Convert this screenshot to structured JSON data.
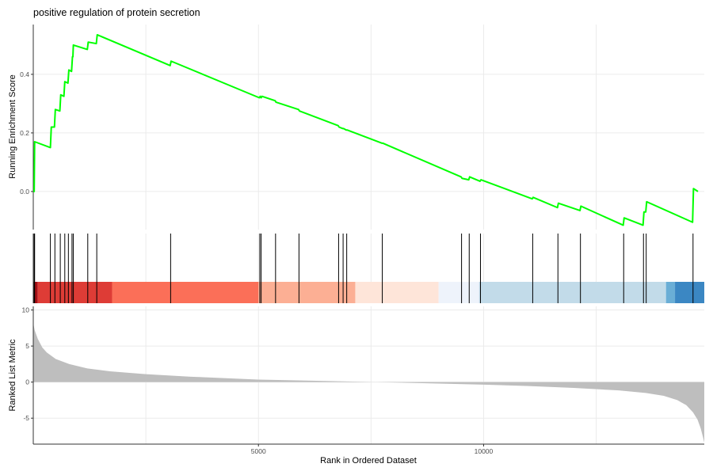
{
  "chart_data": {
    "type": "line",
    "title": "positive regulation of protein secretion",
    "xlabel": "Rank in Ordered Dataset",
    "x_ticks": [
      5000,
      10000
    ],
    "x_gridlines": [
      2500,
      5000,
      7500,
      10000,
      12500
    ],
    "xlim": [
      0,
      14900
    ],
    "grid": true,
    "colors": {
      "running_score": "#00ff00",
      "hit_line": "#000000",
      "metric_fill": "#bebebe",
      "axis": "#333333",
      "gridline": "#ebebeb"
    },
    "panels": {
      "running_score": {
        "ylabel": "Running Enrichment Score",
        "ylim": [
          -0.13,
          0.57
        ],
        "y_ticks": [
          0.0,
          0.2,
          0.4
        ],
        "y_tick_labels": [
          "0.0",
          "0.2",
          "0.4"
        ],
        "series": [
          {
            "points": [
              [
                0,
                0.0
              ],
              [
                20,
                0.0
              ],
              [
                30,
                0.17
              ],
              [
                380,
                0.15
              ],
              [
                400,
                0.22
              ],
              [
                470,
                0.22
              ],
              [
                490,
                0.28
              ],
              [
                590,
                0.275
              ],
              [
                610,
                0.33
              ],
              [
                680,
                0.325
              ],
              [
                700,
                0.375
              ],
              [
                770,
                0.37
              ],
              [
                790,
                0.415
              ],
              [
                850,
                0.41
              ],
              [
                870,
                0.46
              ],
              [
                880,
                0.46
              ],
              [
                890,
                0.5
              ],
              [
                1200,
                0.485
              ],
              [
                1220,
                0.51
              ],
              [
                1400,
                0.505
              ],
              [
                1420,
                0.535
              ],
              [
                3040,
                0.43
              ],
              [
                3060,
                0.445
              ],
              [
                5020,
                0.32
              ],
              [
                5040,
                0.325
              ],
              [
                5060,
                0.32
              ],
              [
                5080,
                0.325
              ],
              [
                5370,
                0.31
              ],
              [
                5390,
                0.305
              ],
              [
                5890,
                0.28
              ],
              [
                5910,
                0.275
              ],
              [
                6770,
                0.225
              ],
              [
                6790,
                0.22
              ],
              [
                6870,
                0.215
              ],
              [
                6890,
                0.215
              ],
              [
                6950,
                0.21
              ],
              [
                6970,
                0.21
              ],
              [
                7740,
                0.165
              ],
              [
                7760,
                0.165
              ],
              [
                9500,
                0.05
              ],
              [
                9520,
                0.045
              ],
              [
                9670,
                0.04
              ],
              [
                9690,
                0.05
              ],
              [
                9920,
                0.035
              ],
              [
                9940,
                0.04
              ],
              [
                11080,
                -0.025
              ],
              [
                11100,
                -0.02
              ],
              [
                11640,
                -0.055
              ],
              [
                11660,
                -0.04
              ],
              [
                12140,
                -0.065
              ],
              [
                12160,
                -0.05
              ],
              [
                13100,
                -0.115
              ],
              [
                13120,
                -0.09
              ],
              [
                13540,
                -0.115
              ],
              [
                13560,
                -0.07
              ],
              [
                13600,
                -0.07
              ],
              [
                13620,
                -0.035
              ],
              [
                14640,
                -0.105
              ],
              [
                14660,
                0.01
              ],
              [
                14760,
                0.0
              ]
            ]
          }
        ]
      },
      "hits": {
        "positions": [
          20,
          30,
          380,
          480,
          600,
          700,
          780,
          860,
          890,
          1210,
          1410,
          3050,
          5030,
          5060,
          5380,
          5900,
          6780,
          6880,
          6960,
          7750,
          9510,
          9680,
          9930,
          11090,
          11650,
          12150,
          13110,
          13550,
          13610,
          14650
        ],
        "color_bands": [
          {
            "from": 0,
            "to": 100,
            "color": "#a50f15"
          },
          {
            "from": 100,
            "to": 1750,
            "color": "#de3c36"
          },
          {
            "from": 1750,
            "to": 5000,
            "color": "#fb6f58"
          },
          {
            "from": 5000,
            "to": 7150,
            "color": "#fcaf94"
          },
          {
            "from": 7150,
            "to": 9000,
            "color": "#fee5d9"
          },
          {
            "from": 9000,
            "to": 9900,
            "color": "#eef3fb"
          },
          {
            "from": 9900,
            "to": 14050,
            "color": "#c2dbe9"
          },
          {
            "from": 14050,
            "to": 14250,
            "color": "#6aaed6"
          },
          {
            "from": 14250,
            "to": 14900,
            "color": "#3b87c3"
          }
        ]
      },
      "ranked_metric": {
        "ylabel": "Ranked List Metric",
        "ylim": [
          -8.6,
          10.5
        ],
        "y_ticks": [
          10,
          5,
          0,
          -5
        ],
        "y_tick_labels": [
          "10",
          "5",
          "0",
          "-5"
        ],
        "type": "area",
        "points": [
          [
            0,
            9.5
          ],
          [
            5,
            8.0
          ],
          [
            30,
            7.2
          ],
          [
            100,
            6.0
          ],
          [
            200,
            4.8
          ],
          [
            300,
            4.1
          ],
          [
            500,
            3.2
          ],
          [
            800,
            2.5
          ],
          [
            1200,
            1.9
          ],
          [
            1700,
            1.5
          ],
          [
            2500,
            1.1
          ],
          [
            3500,
            0.75
          ],
          [
            5000,
            0.35
          ],
          [
            6500,
            0.15
          ],
          [
            7500,
            0.02
          ],
          [
            8000,
            -0.05
          ],
          [
            9000,
            -0.2
          ],
          [
            10000,
            -0.35
          ],
          [
            11000,
            -0.55
          ],
          [
            12000,
            -0.8
          ],
          [
            13000,
            -1.15
          ],
          [
            13600,
            -1.5
          ],
          [
            14000,
            -1.9
          ],
          [
            14300,
            -2.5
          ],
          [
            14500,
            -3.2
          ],
          [
            14650,
            -4.2
          ],
          [
            14750,
            -5.2
          ],
          [
            14820,
            -6.4
          ],
          [
            14870,
            -7.6
          ],
          [
            14900,
            -8.4
          ]
        ]
      }
    }
  }
}
